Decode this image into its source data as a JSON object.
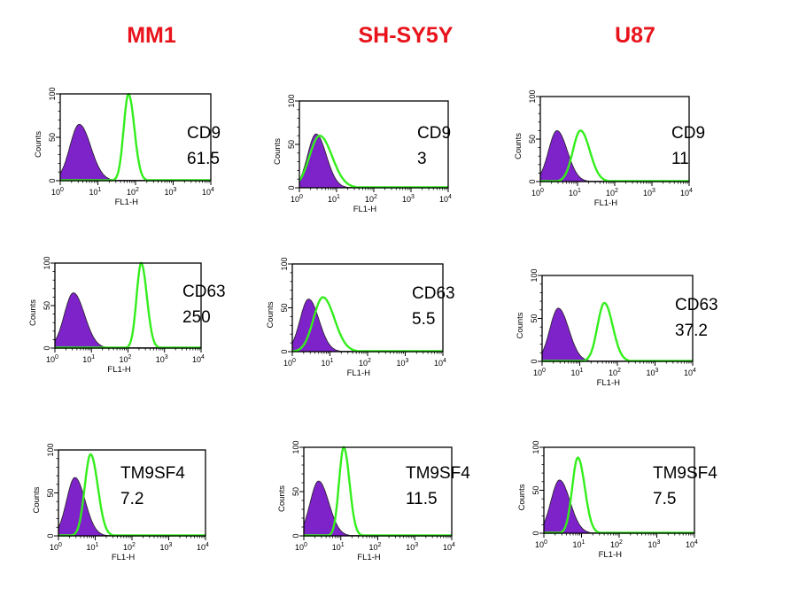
{
  "columns": [
    {
      "label": "MM1"
    },
    {
      "label": "SH-SY5Y"
    },
    {
      "label": "U87"
    }
  ],
  "colors": {
    "title": "#e8131b",
    "isotype_fill": "#7e22c9",
    "marker_line": "#33ee1c",
    "axis": "#000000"
  },
  "chart_data": [
    {
      "type": "histogram",
      "cell_line": "MM1",
      "marker": "CD9",
      "value": "61.5",
      "xlabel": "FL1-H",
      "ylabel": "Counts",
      "xscale": "log",
      "xlim": [
        1,
        10000
      ],
      "ylim": [
        0,
        100
      ],
      "yticks": [
        "0",
        "50",
        "100"
      ],
      "series": [
        {
          "type": "filled",
          "color": "#7e22c9",
          "peak_x": 3.2,
          "peak_y": 65,
          "width_decades": 0.55
        },
        {
          "type": "line",
          "color": "#33ee1c",
          "peak_x": 65,
          "peak_y": 100,
          "width_decades": 0.28
        }
      ]
    },
    {
      "type": "histogram",
      "cell_line": "SH-SY5Y",
      "marker": "CD9",
      "value": "3",
      "xlabel": "FL1-H",
      "ylabel": "Counts",
      "xscale": "log",
      "xlim": [
        1,
        10000
      ],
      "ylim": [
        0,
        100
      ],
      "yticks": [
        "0",
        "50",
        "100"
      ],
      "series": [
        {
          "type": "filled",
          "color": "#7e22c9",
          "peak_x": 2.8,
          "peak_y": 62,
          "width_decades": 0.5
        },
        {
          "type": "line",
          "color": "#33ee1c",
          "peak_x": 3.5,
          "peak_y": 60,
          "width_decades": 0.6
        }
      ]
    },
    {
      "type": "histogram",
      "cell_line": "U87",
      "marker": "CD9",
      "value": "11",
      "xlabel": "FL1-H",
      "ylabel": "Counts",
      "xscale": "log",
      "xlim": [
        1,
        10000
      ],
      "ylim": [
        0,
        100
      ],
      "yticks": [
        "0",
        "50",
        "100"
      ],
      "series": [
        {
          "type": "filled",
          "color": "#7e22c9",
          "peak_x": 2.8,
          "peak_y": 60,
          "width_decades": 0.5
        },
        {
          "type": "line",
          "color": "#33ee1c",
          "peak_x": 12,
          "peak_y": 60,
          "width_decades": 0.45
        }
      ]
    },
    {
      "type": "histogram",
      "cell_line": "MM1",
      "marker": "CD63",
      "value": "250",
      "xlabel": "FL1-H",
      "ylabel": "Counts",
      "xscale": "log",
      "xlim": [
        1,
        10000
      ],
      "ylim": [
        0,
        100
      ],
      "yticks": [
        "0",
        "50",
        "100"
      ],
      "series": [
        {
          "type": "filled",
          "color": "#7e22c9",
          "peak_x": 3.2,
          "peak_y": 65,
          "width_decades": 0.55
        },
        {
          "type": "line",
          "color": "#33ee1c",
          "peak_x": 230,
          "peak_y": 100,
          "width_decades": 0.28
        }
      ]
    },
    {
      "type": "histogram",
      "cell_line": "SH-SY5Y",
      "marker": "CD63",
      "value": "5.5",
      "xlabel": "FL1-H",
      "ylabel": "Counts",
      "xscale": "log",
      "xlim": [
        1,
        10000
      ],
      "ylim": [
        0,
        100
      ],
      "yticks": [
        "0",
        "50",
        "100"
      ],
      "series": [
        {
          "type": "filled",
          "color": "#7e22c9",
          "peak_x": 2.7,
          "peak_y": 60,
          "width_decades": 0.5
        },
        {
          "type": "line",
          "color": "#33ee1c",
          "peak_x": 6.5,
          "peak_y": 62,
          "width_decades": 0.55
        }
      ]
    },
    {
      "type": "histogram",
      "cell_line": "U87",
      "marker": "CD63",
      "value": "37.2",
      "xlabel": "FL1-H",
      "ylabel": "Counts",
      "xscale": "log",
      "xlim": [
        1,
        10000
      ],
      "ylim": [
        0,
        100
      ],
      "yticks": [
        "0",
        "50",
        "100"
      ],
      "series": [
        {
          "type": "filled",
          "color": "#7e22c9",
          "peak_x": 2.7,
          "peak_y": 62,
          "width_decades": 0.5
        },
        {
          "type": "line",
          "color": "#33ee1c",
          "peak_x": 45,
          "peak_y": 68,
          "width_decades": 0.4
        }
      ]
    },
    {
      "type": "histogram",
      "cell_line": "MM1",
      "marker": "TM9SF4",
      "value": "7.2",
      "xlabel": "FL1-H",
      "ylabel": "Counts",
      "xscale": "log",
      "xlim": [
        1,
        10000
      ],
      "ylim": [
        0,
        100
      ],
      "yticks": [
        "0",
        "50",
        "100"
      ],
      "series": [
        {
          "type": "filled",
          "color": "#7e22c9",
          "peak_x": 2.8,
          "peak_y": 68,
          "width_decades": 0.5
        },
        {
          "type": "line",
          "color": "#33ee1c",
          "peak_x": 7.5,
          "peak_y": 95,
          "width_decades": 0.35
        }
      ]
    },
    {
      "type": "histogram",
      "cell_line": "SH-SY5Y",
      "marker": "TM9SF4",
      "value": "11.5",
      "xlabel": "FL1-H",
      "ylabel": "Counts",
      "xscale": "log",
      "xlim": [
        1,
        10000
      ],
      "ylim": [
        0,
        100
      ],
      "yticks": [
        "0",
        "50",
        "100"
      ],
      "series": [
        {
          "type": "filled",
          "color": "#7e22c9",
          "peak_x": 2.5,
          "peak_y": 62,
          "width_decades": 0.5
        },
        {
          "type": "line",
          "color": "#33ee1c",
          "peak_x": 12,
          "peak_y": 100,
          "width_decades": 0.28
        }
      ]
    },
    {
      "type": "histogram",
      "cell_line": "U87",
      "marker": "TM9SF4",
      "value": "7.5",
      "xlabel": "FL1-H",
      "ylabel": "Counts",
      "xscale": "log",
      "xlim": [
        1,
        10000
      ],
      "ylim": [
        0,
        100
      ],
      "yticks": [
        "0",
        "50",
        "100"
      ],
      "series": [
        {
          "type": "filled",
          "color": "#7e22c9",
          "peak_x": 2.6,
          "peak_y": 62,
          "width_decades": 0.5
        },
        {
          "type": "line",
          "color": "#33ee1c",
          "peak_x": 8,
          "peak_y": 88,
          "width_decades": 0.33
        }
      ]
    }
  ]
}
